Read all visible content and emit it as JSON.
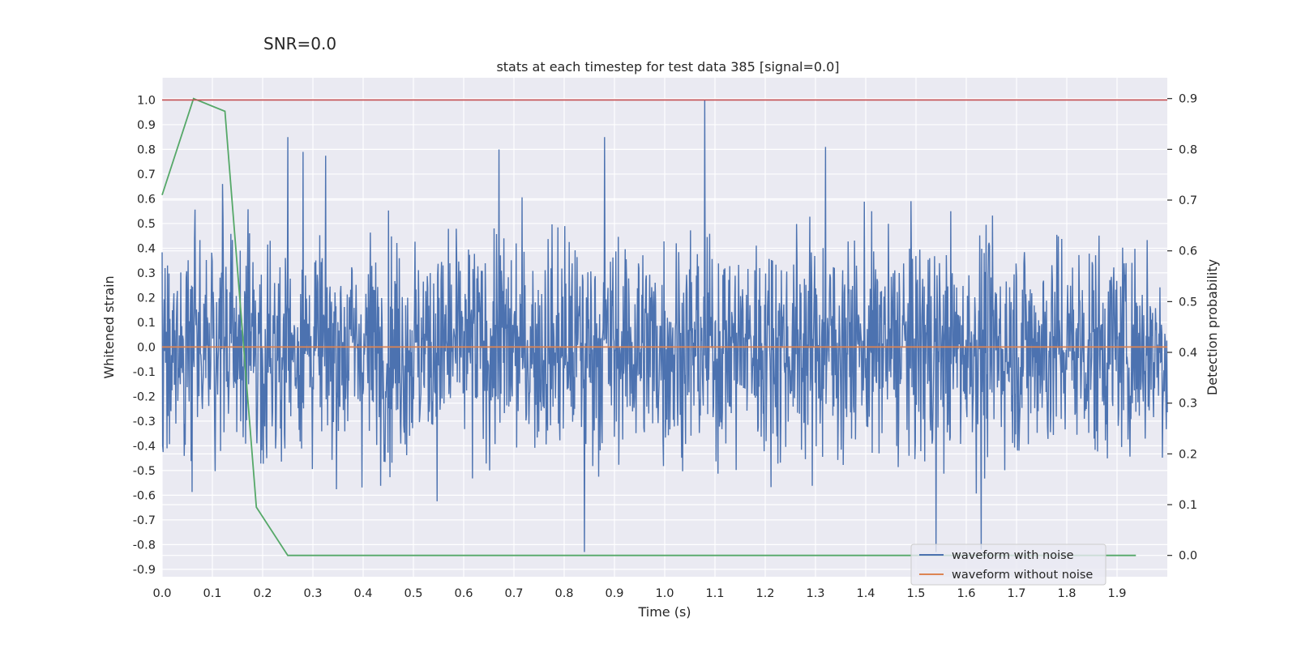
{
  "suptitle": "SNR=0.0",
  "chart_data": {
    "type": "line",
    "title": "stats at each timestep for test data 385 [signal=0.0]",
    "xlabel": "Time (s)",
    "ylabel": "Whitened strain",
    "y2label": "Detection probability",
    "xlim": [
      0.0,
      2.0
    ],
    "ylim": [
      -0.93,
      1.09
    ],
    "y2lim": [
      -0.042,
      0.941
    ],
    "x_ticks": [
      0.0,
      0.1,
      0.2,
      0.3,
      0.4,
      0.5,
      0.6,
      0.7,
      0.8,
      0.9,
      1.0,
      1.1,
      1.2,
      1.3,
      1.4,
      1.5,
      1.6,
      1.7,
      1.8,
      1.9
    ],
    "y_ticks": [
      -0.9,
      -0.8,
      -0.7,
      -0.6,
      -0.5,
      -0.4,
      -0.3,
      -0.2,
      -0.1,
      0.0,
      0.1,
      0.2,
      0.3,
      0.4,
      0.5,
      0.6,
      0.7,
      0.8,
      0.9,
      1.0
    ],
    "y2_ticks": [
      0.0,
      0.1,
      0.2,
      0.3,
      0.4,
      0.5,
      0.6,
      0.7,
      0.8,
      0.9
    ],
    "grid": true,
    "legend_position": "lower-right",
    "colors": {
      "noisy": "#4c72b0",
      "clean": "#dd8452",
      "probability": "#55a868",
      "threshold": "#c44e52",
      "background": "#eaeaf2",
      "grid": "#ffffff"
    },
    "series": [
      {
        "name": "waveform with noise",
        "axis": "left",
        "description": "whitened noisy strain, approx. 2048 samples over 0-2 s, range about -0.83 to 1.0",
        "x_range": [
          0.0,
          2.0
        ],
        "y_min": -0.83,
        "y_max": 1.0,
        "peaks": [
          [
            0.12,
            0.66
          ],
          [
            0.25,
            0.85
          ],
          [
            0.28,
            0.79
          ],
          [
            0.67,
            0.8
          ],
          [
            0.88,
            0.85
          ],
          [
            1.08,
            1.0
          ],
          [
            1.32,
            0.81
          ],
          [
            1.54,
            -0.83
          ],
          [
            1.63,
            -0.82
          ],
          [
            0.84,
            -0.83
          ]
        ]
      },
      {
        "name": "waveform without noise",
        "axis": "left",
        "x": [
          0.0,
          2.0
        ],
        "y": [
          0.0,
          0.0
        ]
      },
      {
        "name": "",
        "axis": "right",
        "x": [
          0.0,
          0.0625,
          0.125,
          0.1875,
          0.25,
          0.3125,
          0.375,
          0.4375,
          0.5,
          0.5625,
          0.625,
          0.6875,
          0.75,
          0.8125,
          0.875,
          0.9375,
          1.0,
          1.0625,
          1.125,
          1.1875,
          1.25,
          1.3125,
          1.375,
          1.4375,
          1.5,
          1.5625,
          1.625,
          1.6875,
          1.75,
          1.8125,
          1.875,
          1.9375
        ],
        "y": [
          0.71,
          0.9,
          0.875,
          0.095,
          0.0,
          0.0,
          0.0,
          0.0,
          0.0,
          0.0,
          0.0,
          0.0,
          0.0,
          0.0,
          0.0,
          0.0,
          0.0,
          0.0,
          0.0,
          0.0,
          0.0,
          0.0,
          0.0,
          0.0,
          0.0,
          0.0,
          0.0,
          0.0,
          0.0,
          0.0,
          0.0,
          0.0
        ]
      },
      {
        "name": "",
        "axis": "left",
        "x": [
          0.0,
          2.0
        ],
        "y": [
          1.0,
          1.0
        ]
      }
    ]
  }
}
